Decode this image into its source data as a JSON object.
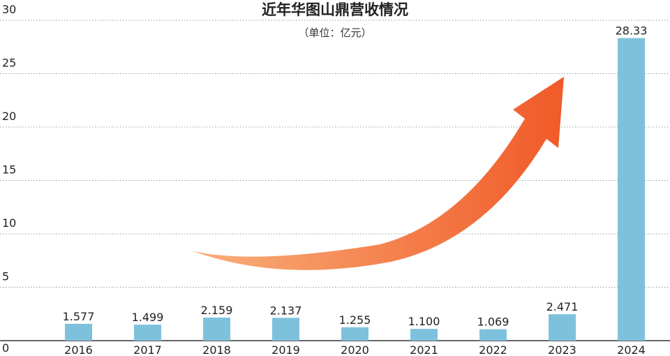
{
  "chart_data": {
    "type": "bar",
    "title": "近年华图山鼎营收情况",
    "subtitle": "（单位：亿元）",
    "categories": [
      "2016",
      "2017",
      "2018",
      "2019",
      "2020",
      "2021",
      "2022",
      "2023",
      "2024"
    ],
    "values": [
      1.577,
      1.499,
      2.159,
      2.137,
      1.255,
      1.1,
      1.069,
      2.471,
      28.33
    ],
    "value_labels": [
      "1.577",
      "1.499",
      "2.159",
      "2.137",
      "1.255",
      "1.100",
      "1.069",
      "2.471",
      "28.33"
    ],
    "yticks": [
      "0",
      "5",
      "10",
      "15",
      "20",
      "25",
      "30"
    ],
    "ylim": [
      0,
      30
    ],
    "grid": true,
    "grid_style": "dotted",
    "legend": "none",
    "bar_color": "#7ec1dc",
    "arrow_gradient": [
      "#f9b07a",
      "#f05a28"
    ],
    "annotation": "upward-trend-arrow"
  }
}
